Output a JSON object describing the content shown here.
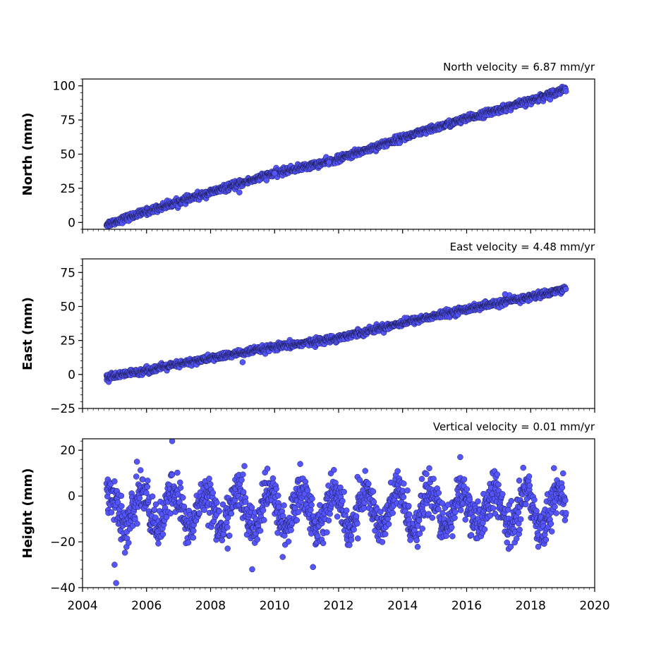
{
  "colors": {
    "marker_fill": "#5555ff",
    "marker_edge": "#1a1a4d",
    "axis": "#000000",
    "background": "#ffffff"
  },
  "chart_data": [
    {
      "type": "scatter",
      "annotation": "North velocity = 6.87 mm/yr",
      "ylabel": "North (mm)",
      "xlim": [
        2004,
        2020
      ],
      "ylim": [
        -5,
        105
      ],
      "yticks": [
        0,
        25,
        50,
        75,
        100
      ],
      "xticks": [],
      "series": [
        {
          "x_start": 2004.75,
          "x_end": 2019.1,
          "y_start": -1,
          "y_end": 98,
          "noise": 1.2,
          "anchors": [
            [
              2004.8,
              -1
            ],
            [
              2006.0,
              8
            ],
            [
              2008.0,
              22
            ],
            [
              2010.0,
              36
            ],
            [
              2011.8,
              45
            ],
            [
              2014.0,
              62
            ],
            [
              2016.0,
              76
            ],
            [
              2018.0,
              89
            ],
            [
              2019.1,
              98
            ]
          ],
          "outliers": [
            [
              2008.9,
              22
            ],
            [
              2010.0,
              36
            ],
            [
              2011.7,
              44
            ]
          ]
        }
      ]
    },
    {
      "type": "scatter",
      "annotation": "East velocity = 4.48 mm/yr",
      "ylabel": "East (mm)",
      "xlim": [
        2004,
        2020
      ],
      "ylim": [
        -25,
        85
      ],
      "yticks": [
        -25,
        0,
        25,
        50,
        75
      ],
      "xticks": [],
      "series": [
        {
          "x_start": 2004.75,
          "x_end": 2019.1,
          "y_start": -2,
          "y_end": 63,
          "noise": 1.2,
          "anchors": [
            [
              2004.8,
              -2
            ],
            [
              2006.0,
              3
            ],
            [
              2008.0,
              12
            ],
            [
              2010.0,
              20
            ],
            [
              2011.8,
              26
            ],
            [
              2014.0,
              38
            ],
            [
              2016.0,
              48
            ],
            [
              2018.0,
              57
            ],
            [
              2019.1,
              63
            ]
          ],
          "outliers": [
            [
              2009.0,
              9
            ],
            [
              2017.2,
              59
            ]
          ]
        }
      ]
    },
    {
      "type": "scatter",
      "annotation": "Vertical velocity = 0.01 mm/yr",
      "ylabel": "Height (mm)",
      "xlim": [
        2004,
        2020
      ],
      "ylim": [
        -40,
        25
      ],
      "yticks": [
        -40,
        -20,
        0,
        20
      ],
      "xticks": [
        2004,
        2006,
        2008,
        2010,
        2012,
        2014,
        2016,
        2018,
        2020
      ],
      "series": [
        {
          "x_start": 2004.75,
          "x_end": 2019.1,
          "mean": -6,
          "seasonal_amplitude": 8,
          "noise": 4.5,
          "anchors": [],
          "outliers": [
            [
              2005.0,
              -30
            ],
            [
              2005.05,
              -38
            ],
            [
              2006.8,
              24
            ],
            [
              2009.3,
              -32
            ],
            [
              2011.2,
              -31
            ],
            [
              2005.7,
              15
            ],
            [
              2010.8,
              14
            ],
            [
              2015.8,
              17
            ]
          ]
        }
      ]
    }
  ]
}
